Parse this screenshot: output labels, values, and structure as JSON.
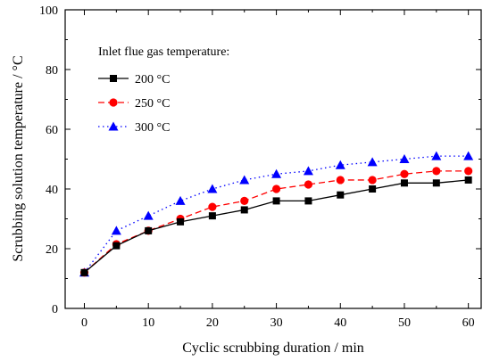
{
  "chart_data": {
    "type": "line",
    "xlabel": "Cyclic scrubbing duration / min",
    "ylabel": "Scrubbing solution temperature / °C",
    "xlim": [
      -3,
      62
    ],
    "ylim": [
      0,
      100
    ],
    "xticks": [
      0,
      10,
      20,
      30,
      40,
      50,
      60
    ],
    "yticks": [
      0,
      20,
      40,
      60,
      80,
      100
    ],
    "legend_title": "Inlet flue gas temperature:",
    "legend_position": "top-left",
    "grid": false,
    "series": [
      {
        "name": "200 °C",
        "color": "#000000",
        "line_style": "solid",
        "marker": "square",
        "x": [
          0,
          5,
          10,
          15,
          20,
          25,
          30,
          35,
          40,
          45,
          50,
          55,
          60
        ],
        "y": [
          12,
          21,
          26,
          29,
          31,
          33,
          36,
          36,
          38,
          40,
          42,
          42,
          43
        ]
      },
      {
        "name": "250 °C",
        "color": "#ff0000",
        "line_style": "dashed",
        "marker": "circle",
        "x": [
          0,
          5,
          10,
          15,
          20,
          25,
          30,
          35,
          40,
          45,
          50,
          55,
          60
        ],
        "y": [
          12,
          21.5,
          26,
          30,
          34,
          36,
          40,
          41.5,
          43,
          43,
          45,
          46,
          46
        ]
      },
      {
        "name": "300 °C",
        "color": "#0000ff",
        "line_style": "dotted",
        "marker": "triangle",
        "x": [
          0,
          5,
          10,
          15,
          20,
          25,
          30,
          35,
          40,
          45,
          50,
          55,
          60
        ],
        "y": [
          12,
          26,
          31,
          36,
          40,
          43,
          45,
          46,
          48,
          49,
          50,
          51,
          51
        ]
      }
    ]
  }
}
